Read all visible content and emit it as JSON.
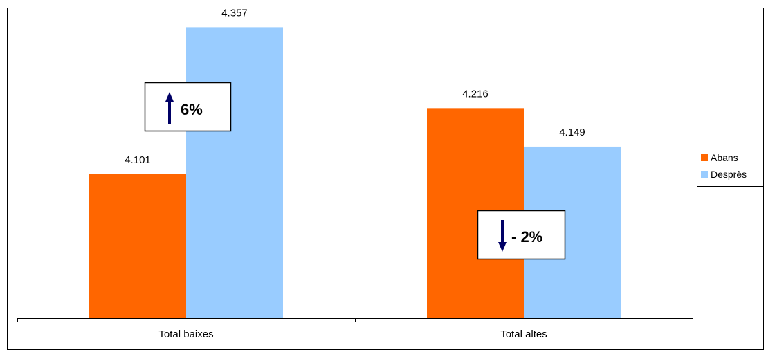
{
  "chart_data": {
    "type": "bar",
    "categories": [
      "Total baixes",
      "Total altes"
    ],
    "series": [
      {
        "name": "Abans",
        "color": "#FF6600",
        "values": [
          4.101,
          4.216
        ],
        "labels": [
          "4.101",
          "4.216"
        ]
      },
      {
        "name": "Desprès",
        "color": "#99CCFF",
        "values": [
          4.357,
          4.149
        ],
        "labels": [
          "4.357",
          "4.149"
        ]
      }
    ],
    "annotations": [
      {
        "category": "Total baixes",
        "text": "6%",
        "arrow": "up",
        "arrow_color": "#000066"
      },
      {
        "category": "Total altes",
        "text": "- 2%",
        "arrow": "down",
        "arrow_color": "#000066"
      }
    ],
    "ylim": [
      3.85,
      4.39
    ],
    "grid": false,
    "legend_position": "right",
    "title": "",
    "xlabel": "",
    "ylabel": ""
  }
}
